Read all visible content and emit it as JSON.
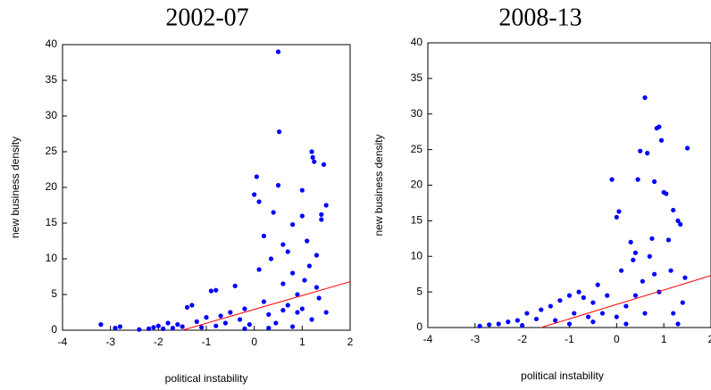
{
  "chart_data": [
    {
      "type": "scatter",
      "title": "2002-07",
      "x_label": "political instability",
      "y_label": "new business density",
      "color": "#0000ff",
      "xlim": [
        -4,
        2
      ],
      "ylim": [
        0,
        40
      ],
      "xticks": [
        -4,
        -3,
        -2,
        -1,
        0,
        1,
        2
      ],
      "yticks": [
        0,
        5,
        10,
        15,
        20,
        25,
        30,
        35,
        40
      ],
      "x": [
        -3.2,
        -2.9,
        -2.8,
        -2.4,
        -2.2,
        -2.1,
        -2.0,
        -1.9,
        -1.8,
        -1.7,
        -1.6,
        -1.5,
        -1.4,
        -1.3,
        -1.2,
        -1.1,
        -1.0,
        -0.9,
        -0.8,
        -0.8,
        -0.7,
        -0.6,
        -0.5,
        -0.4,
        -0.3,
        -0.2,
        -0.1,
        0.0,
        0.05,
        0.1,
        0.1,
        0.2,
        0.2,
        0.3,
        0.35,
        0.4,
        0.45,
        0.5,
        0.5,
        0.52,
        0.6,
        0.6,
        0.7,
        0.7,
        0.8,
        0.8,
        0.9,
        0.9,
        1.0,
        1.0,
        1.05,
        1.1,
        1.15,
        1.2,
        1.22,
        1.25,
        1.3,
        1.35,
        1.4,
        1.4,
        1.45,
        1.5,
        1.5,
        1.0,
        0.8,
        0.3,
        -0.2,
        1.2,
        0.6,
        1.3
      ],
      "y": [
        0.8,
        0.3,
        0.5,
        0.1,
        0.2,
        0.4,
        0.6,
        0.2,
        1.0,
        0.3,
        0.8,
        0.5,
        3.2,
        3.5,
        1.2,
        0.4,
        1.8,
        5.5,
        5.6,
        0.6,
        2.0,
        1.0,
        2.5,
        6.2,
        1.5,
        3.0,
        0.8,
        19.0,
        21.5,
        18.0,
        8.5,
        4.0,
        13.2,
        2.2,
        10.0,
        16.5,
        1.0,
        20.3,
        39.0,
        27.8,
        6.5,
        12.0,
        3.5,
        11.0,
        8.0,
        14.8,
        5.0,
        2.5,
        19.6,
        16.0,
        7.0,
        12.5,
        9.0,
        25.0,
        24.2,
        23.6,
        6.0,
        4.5,
        16.2,
        15.5,
        23.2,
        17.5,
        2.5,
        3.0,
        0.5,
        0.3,
        0.2,
        1.5,
        2.8,
        10.5
      ],
      "fit_line": {
        "color": "#ff0000",
        "x": [
          -1.5,
          2
        ],
        "y": [
          0,
          6.8
        ]
      }
    },
    {
      "type": "scatter",
      "title": "2008-13",
      "x_label": "political instability",
      "y_label": "new business density",
      "color": "#0000ff",
      "xlim": [
        -4,
        2
      ],
      "ylim": [
        0,
        40
      ],
      "xticks": [
        -4,
        -3,
        -2,
        -1,
        0,
        1,
        2
      ],
      "yticks": [
        0,
        5,
        10,
        15,
        20,
        25,
        30,
        35,
        40
      ],
      "x": [
        -2.9,
        -2.7,
        -2.5,
        -2.3,
        -2.1,
        -2.0,
        -1.9,
        -1.7,
        -1.6,
        -1.4,
        -1.3,
        -1.2,
        -1.0,
        -0.9,
        -0.8,
        -0.7,
        -0.6,
        -0.5,
        -0.4,
        -0.3,
        -0.2,
        -0.1,
        0.0,
        0.05,
        0.1,
        0.2,
        0.3,
        0.35,
        0.4,
        0.45,
        0.5,
        0.55,
        0.6,
        0.65,
        0.7,
        0.75,
        0.8,
        0.85,
        0.9,
        0.95,
        1.0,
        1.05,
        1.1,
        1.15,
        1.2,
        1.3,
        1.35,
        1.4,
        1.5,
        1.45,
        0.9,
        0.6,
        0.2,
        -0.5,
        1.2,
        0.8,
        0.4,
        1.3,
        0.0,
        -1.0
      ],
      "y": [
        0.2,
        0.4,
        0.5,
        0.8,
        1.0,
        0.3,
        2.0,
        1.2,
        2.5,
        3.0,
        1.0,
        3.8,
        4.5,
        2.0,
        5.0,
        4.2,
        1.5,
        3.5,
        6.0,
        2.0,
        4.5,
        20.8,
        15.5,
        16.3,
        8.0,
        3.0,
        12.0,
        9.5,
        10.5,
        20.8,
        24.8,
        6.5,
        32.3,
        24.5,
        10.0,
        12.5,
        20.5,
        28.0,
        28.2,
        26.3,
        19.0,
        18.8,
        12.3,
        8.0,
        16.5,
        15.0,
        14.5,
        3.5,
        25.2,
        7.0,
        5.0,
        2.0,
        0.5,
        0.8,
        2.0,
        7.5,
        4.5,
        0.5,
        1.5,
        0.5
      ],
      "fit_line": {
        "color": "#ff0000",
        "x": [
          -1.6,
          2
        ],
        "y": [
          0,
          7.3
        ]
      }
    }
  ]
}
